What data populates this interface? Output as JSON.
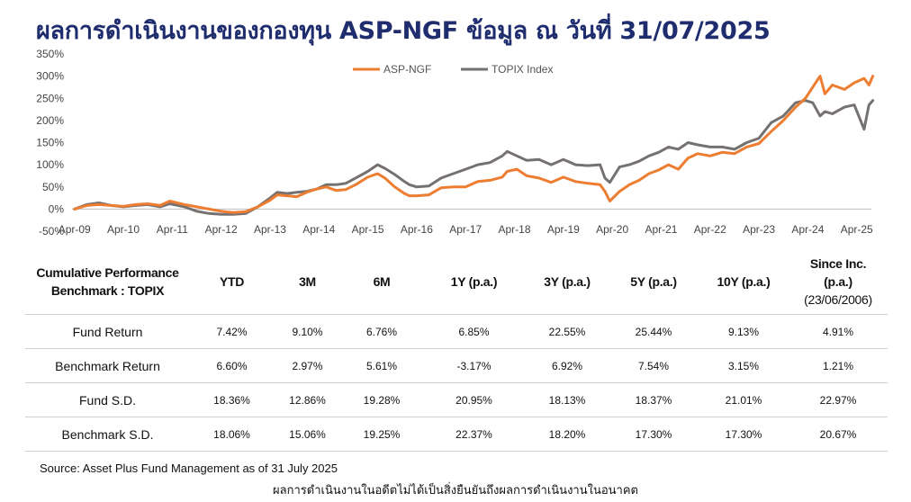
{
  "title": "ผลการดำเนินงานของกองทุน ASP-NGF ข้อมูล ณ วันที่ 31/07/2025",
  "chart_data": {
    "type": "line",
    "title": "",
    "xlabel": "",
    "ylabel": "",
    "ylim": [
      -50,
      350
    ],
    "yticks": [
      "-50%",
      "0%",
      "50%",
      "100%",
      "150%",
      "200%",
      "250%",
      "300%",
      "350%"
    ],
    "ytick_values": [
      -50,
      0,
      50,
      100,
      150,
      200,
      250,
      300,
      350
    ],
    "xticks": [
      "Apr-09",
      "Apr-10",
      "Apr-11",
      "Apr-12",
      "Apr-13",
      "Apr-14",
      "Apr-15",
      "Apr-16",
      "Apr-17",
      "Apr-18",
      "Apr-19",
      "Apr-20",
      "Apr-21",
      "Apr-22",
      "Apr-23",
      "Apr-24",
      "Apr-25"
    ],
    "xtick_values": [
      2009.25,
      2010.25,
      2011.25,
      2012.25,
      2013.25,
      2014.25,
      2015.25,
      2016.25,
      2017.25,
      2018.25,
      2019.25,
      2020.25,
      2021.25,
      2022.25,
      2023.25,
      2024.25,
      2025.25
    ],
    "xlim": [
      2009.2,
      2025.55
    ],
    "grid": false,
    "legend_position": "top-center",
    "series": [
      {
        "name": "ASP-NGF",
        "color": "#ed7d31",
        "x": [
          2009.25,
          2009.5,
          2009.75,
          2010.0,
          2010.25,
          2010.5,
          2010.75,
          2011.0,
          2011.2,
          2011.5,
          2011.75,
          2012.0,
          2012.25,
          2012.5,
          2012.75,
          2013.0,
          2013.25,
          2013.4,
          2013.6,
          2013.8,
          2014.0,
          2014.2,
          2014.4,
          2014.6,
          2014.8,
          2015.0,
          2015.25,
          2015.45,
          2015.6,
          2015.8,
          2016.0,
          2016.1,
          2016.25,
          2016.5,
          2016.75,
          2017.0,
          2017.25,
          2017.5,
          2017.75,
          2018.0,
          2018.1,
          2018.3,
          2018.5,
          2018.75,
          2019.0,
          2019.25,
          2019.5,
          2019.75,
          2020.0,
          2020.1,
          2020.2,
          2020.4,
          2020.6,
          2020.8,
          2021.0,
          2021.2,
          2021.4,
          2021.6,
          2021.8,
          2022.0,
          2022.25,
          2022.5,
          2022.75,
          2023.0,
          2023.25,
          2023.5,
          2023.75,
          2024.0,
          2024.2,
          2024.35,
          2024.5,
          2024.6,
          2024.75,
          2025.0,
          2025.2,
          2025.4,
          2025.5,
          2025.58
        ],
        "y": [
          0,
          8,
          10,
          8,
          6,
          10,
          12,
          8,
          18,
          10,
          5,
          0,
          -5,
          -8,
          -6,
          5,
          20,
          32,
          30,
          28,
          38,
          45,
          50,
          42,
          44,
          55,
          72,
          80,
          70,
          50,
          35,
          30,
          30,
          32,
          48,
          50,
          50,
          62,
          65,
          72,
          85,
          90,
          75,
          70,
          60,
          72,
          62,
          58,
          55,
          40,
          18,
          40,
          55,
          65,
          80,
          88,
          100,
          90,
          115,
          125,
          120,
          128,
          125,
          140,
          148,
          175,
          200,
          230,
          250,
          275,
          300,
          260,
          280,
          270,
          285,
          295,
          280,
          300
        ]
      },
      {
        "name": "TOPIX Index",
        "color": "#767171",
        "x": [
          2009.25,
          2009.5,
          2009.75,
          2010.0,
          2010.25,
          2010.5,
          2010.75,
          2011.0,
          2011.2,
          2011.5,
          2011.75,
          2012.0,
          2012.25,
          2012.5,
          2012.75,
          2013.0,
          2013.25,
          2013.4,
          2013.6,
          2013.8,
          2014.0,
          2014.2,
          2014.4,
          2014.6,
          2014.8,
          2015.0,
          2015.25,
          2015.45,
          2015.6,
          2015.8,
          2016.0,
          2016.1,
          2016.25,
          2016.5,
          2016.75,
          2017.0,
          2017.25,
          2017.5,
          2017.75,
          2018.0,
          2018.1,
          2018.3,
          2018.5,
          2018.75,
          2019.0,
          2019.25,
          2019.5,
          2019.75,
          2020.0,
          2020.1,
          2020.2,
          2020.4,
          2020.6,
          2020.8,
          2021.0,
          2021.2,
          2021.4,
          2021.6,
          2021.8,
          2022.0,
          2022.25,
          2022.5,
          2022.75,
          2023.0,
          2023.25,
          2023.5,
          2023.75,
          2024.0,
          2024.2,
          2024.35,
          2024.5,
          2024.6,
          2024.75,
          2025.0,
          2025.2,
          2025.4,
          2025.5,
          2025.58
        ],
        "y": [
          0,
          10,
          14,
          8,
          5,
          8,
          10,
          5,
          12,
          5,
          -5,
          -10,
          -12,
          -12,
          -10,
          5,
          25,
          38,
          35,
          38,
          40,
          45,
          55,
          55,
          58,
          70,
          85,
          100,
          92,
          78,
          62,
          55,
          50,
          52,
          70,
          80,
          90,
          100,
          105,
          120,
          130,
          120,
          110,
          112,
          100,
          112,
          100,
          98,
          100,
          70,
          60,
          95,
          100,
          108,
          120,
          128,
          140,
          135,
          150,
          145,
          140,
          140,
          135,
          150,
          160,
          195,
          210,
          240,
          245,
          240,
          210,
          220,
          215,
          230,
          235,
          180,
          235,
          245
        ]
      }
    ]
  },
  "table": {
    "header_first_line1": "Cumulative Performance",
    "header_first_line2": "Benchmark : TOPIX",
    "columns": [
      "YTD",
      "3M",
      "6M",
      "1Y (p.a.)",
      "3Y (p.a.)",
      "5Y (p.a.)",
      "10Y (p.a.)"
    ],
    "since_line1": "Since Inc.",
    "since_line2": "(p.a.)",
    "since_line3": "(23/06/2006)",
    "rows": [
      {
        "label": "Fund Return",
        "values": [
          "7.42%",
          "9.10%",
          "6.76%",
          "6.85%",
          "22.55%",
          "25.44%",
          "9.13%",
          "4.91%"
        ]
      },
      {
        "label": "Benchmark Return",
        "values": [
          "6.60%",
          "2.97%",
          "5.61%",
          "-3.17%",
          "6.92%",
          "7.54%",
          "3.15%",
          "1.21%"
        ]
      },
      {
        "label": "Fund S.D.",
        "values": [
          "18.36%",
          "12.86%",
          "19.28%",
          "20.95%",
          "18.13%",
          "18.37%",
          "21.01%",
          "22.97%"
        ]
      },
      {
        "label": "Benchmark S.D.",
        "values": [
          "18.06%",
          "15.06%",
          "19.25%",
          "22.37%",
          "18.20%",
          "17.30%",
          "17.30%",
          "20.67%"
        ]
      }
    ]
  },
  "source": "Source: Asset Plus Fund Management as of 31 July 2025",
  "disclaimer": "ผลการดำเนินงานในอดีตไม่ได้เป็นสิ่งยืนยันถึงผลการดำเนินงานในอนาคต"
}
